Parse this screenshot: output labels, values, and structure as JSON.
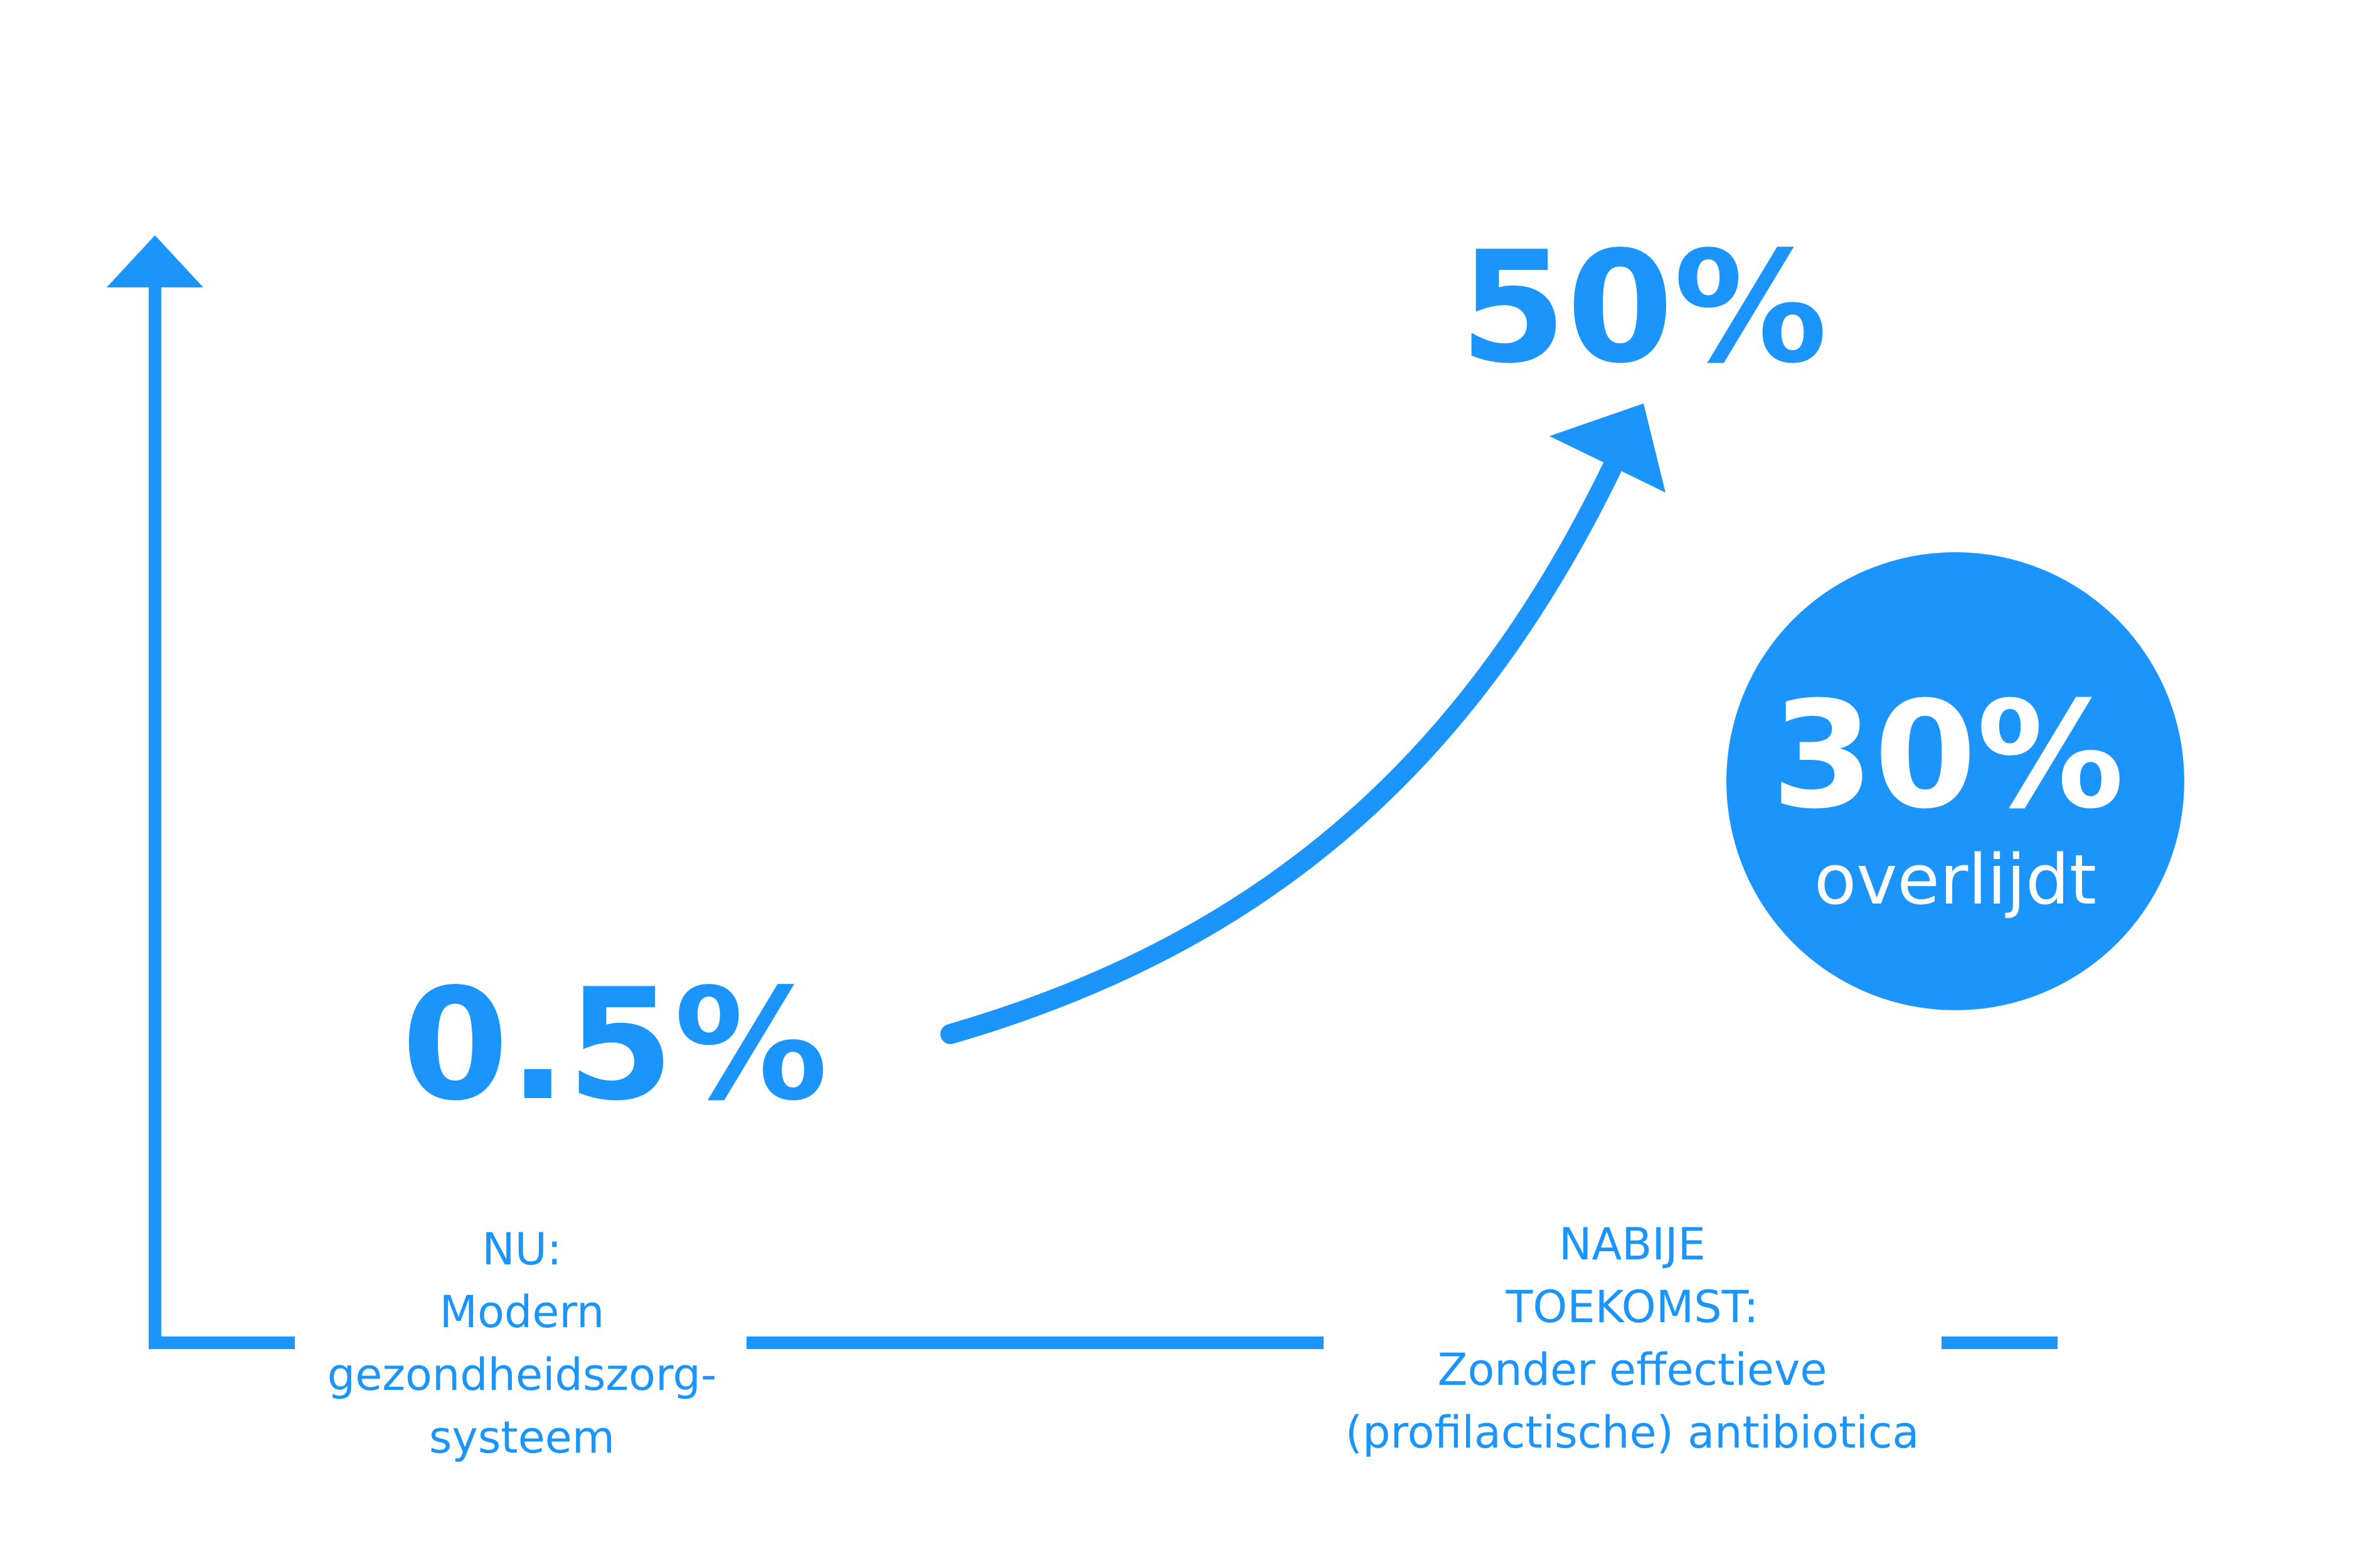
{
  "colors": {
    "accent": "#1b95fb",
    "background": "#ffffff",
    "badge_text": "#ffffff"
  },
  "values": {
    "now": "0.5%",
    "future": "50%"
  },
  "badge": {
    "value": "30%",
    "label": "overlijdt"
  },
  "labels": {
    "now": [
      "NU:",
      "Modern",
      "gezondheidszorg-",
      "systeem"
    ],
    "future": [
      "NABIJE",
      "TOEKOMST:",
      "Zonder effectieve",
      "(profilactische) antibiotica"
    ]
  }
}
